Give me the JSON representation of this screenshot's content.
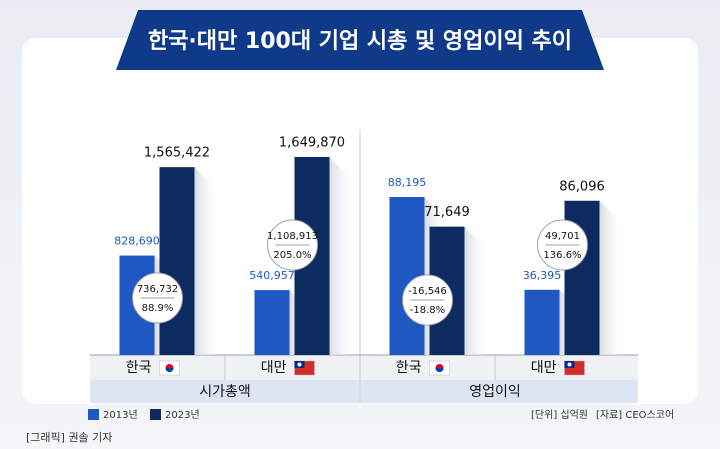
{
  "title": "한국·대만 100대 기업 시총 및 영업이익 추이",
  "unit": "[단위] 십억원",
  "source": "[자료] CEO스코어",
  "credit": "[그래픽] 권솔 기자",
  "chart_data": [
    {
      "type": "bar",
      "label": "시가총액",
      "categories": [
        "한국",
        "대만"
      ],
      "series": [
        {
          "name": "2013년",
          "color": "#1f57c3",
          "values": [
            828690,
            540957
          ],
          "value_labels": [
            "828,690",
            "540,957"
          ]
        },
        {
          "name": "2023년",
          "color": "#0d2b5e",
          "values": [
            1565422,
            1649870
          ],
          "value_labels": [
            "1,565,422",
            "1,649,870"
          ]
        }
      ],
      "annotations": [
        {
          "diff": {
            "value": 736732,
            "label": "736,732"
          },
          "pct": {
            "value": 88.9,
            "label": "88.9%"
          }
        },
        {
          "diff": {
            "value": 1108913,
            "label": "1,108,913"
          },
          "pct": {
            "value": 205.0,
            "label": "205.0%"
          }
        }
      ]
    },
    {
      "type": "bar",
      "label": "영업이익",
      "categories": [
        "한국",
        "대만"
      ],
      "series": [
        {
          "name": "2013년",
          "color": "#1f57c3",
          "values": [
            88195,
            36395
          ],
          "value_labels": [
            "88,195",
            "36,395"
          ]
        },
        {
          "name": "2023년",
          "color": "#0d2b5e",
          "values": [
            71649,
            86096
          ],
          "value_labels": [
            "71,649",
            "86,096"
          ]
        }
      ],
      "annotations": [
        {
          "diff": {
            "value": -16546,
            "label": "-16,546"
          },
          "pct": {
            "value": -18.8,
            "label": "-18.8%"
          }
        },
        {
          "diff": {
            "value": 49701,
            "label": "49,701"
          },
          "pct": {
            "value": 136.6,
            "label": "136.6%"
          }
        }
      ]
    }
  ]
}
